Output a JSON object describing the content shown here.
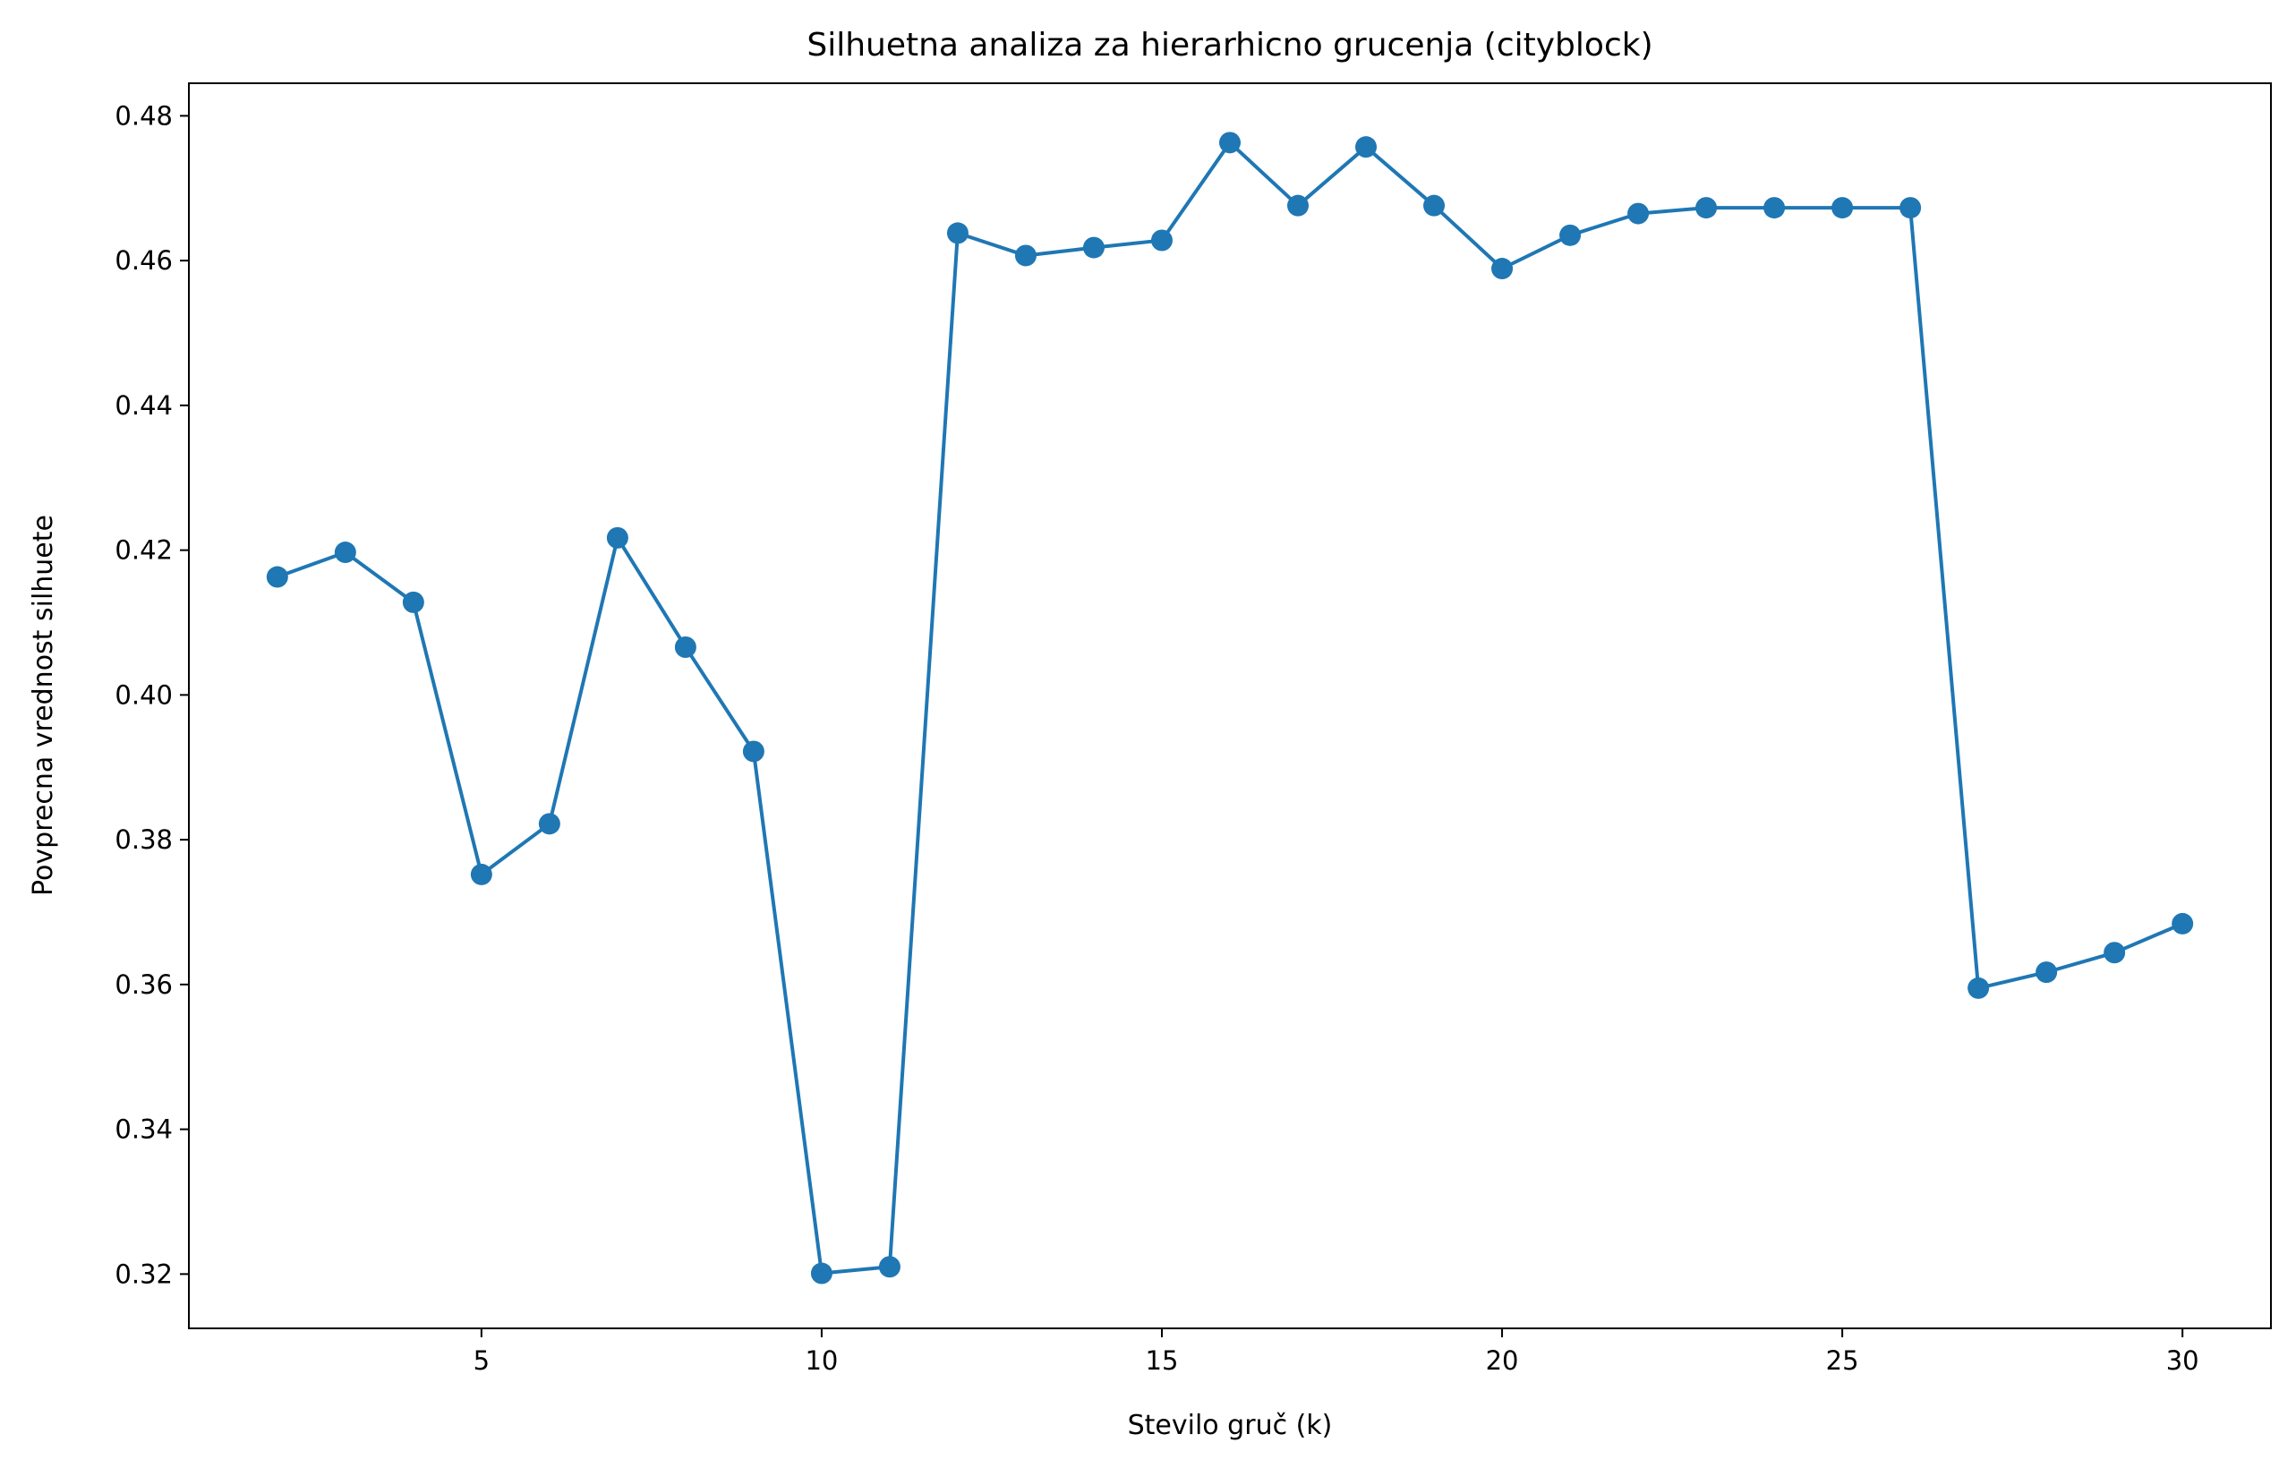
{
  "chart_data": {
    "type": "line",
    "title": "Silhuetna analiza za hierarhicno grucenja (cityblock)",
    "xlabel": "Stevilo gruč (k)",
    "ylabel": "Povprecna vrednost silhuete",
    "xlim": [
      0.7,
      31.3
    ],
    "ylim": [
      0.3125,
      0.4845
    ],
    "xticks": [
      5,
      10,
      15,
      20,
      25,
      30
    ],
    "yticks": [
      0.32,
      0.34,
      0.36,
      0.38,
      0.4,
      0.42,
      0.44,
      0.46,
      0.48
    ],
    "grid": false,
    "marker": "circle",
    "color": "#1f77b4",
    "x": [
      2,
      3,
      4,
      5,
      6,
      7,
      8,
      9,
      10,
      11,
      12,
      13,
      14,
      15,
      16,
      17,
      18,
      19,
      20,
      21,
      22,
      23,
      24,
      25,
      26,
      27,
      28,
      29,
      30
    ],
    "y": [
      0.4163,
      0.4197,
      0.4128,
      0.3752,
      0.3822,
      0.4217,
      0.4066,
      0.3922,
      0.3201,
      0.321,
      0.4638,
      0.4607,
      0.4618,
      0.4628,
      0.4763,
      0.4676,
      0.4757,
      0.4676,
      0.4589,
      0.4635,
      0.4665,
      0.4673,
      0.4673,
      0.4673,
      0.4673,
      0.3595,
      0.3617,
      0.3644,
      0.3684
    ]
  }
}
